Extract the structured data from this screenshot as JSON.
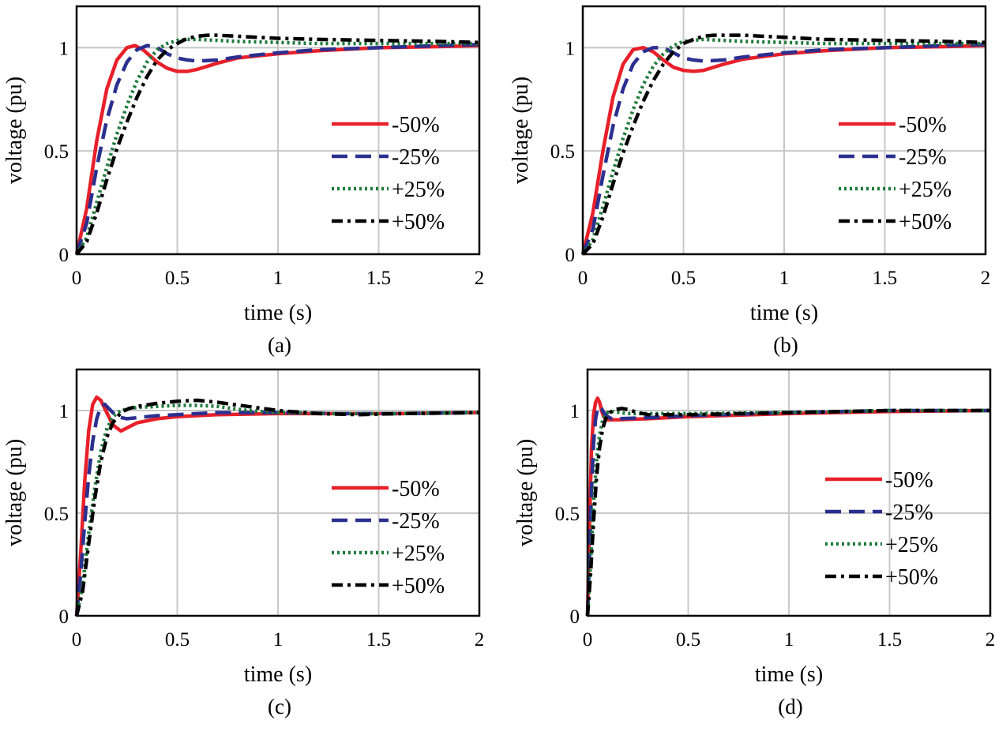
{
  "colors": {
    "minus50": "#e8202a",
    "minus25": "#2b2f8f",
    "plus25": "#1e7a3a",
    "plus50": "#000000",
    "grid": "#c8c8c8",
    "axes": "#000000"
  },
  "chart_data": [
    {
      "type": "line",
      "caption": "(a)",
      "xlabel": "time (s)",
      "ylabel": "voltage (pu)",
      "xlim": [
        0,
        2
      ],
      "ylim": [
        0,
        1.2
      ],
      "xticks": [
        0,
        0.5,
        1,
        1.5,
        2
      ],
      "xtick_labels": [
        "0",
        "0.5",
        "1",
        "1.5",
        "2"
      ],
      "yticks": [
        0,
        0.5,
        1
      ],
      "ytick_labels": [
        "0",
        "0.5",
        "1"
      ],
      "grid": true,
      "legend_position": "center-right",
      "series": [
        {
          "name": "-50%",
          "style": "solid",
          "color": "#e8202a",
          "x": [
            0,
            0.05,
            0.1,
            0.15,
            0.2,
            0.25,
            0.29,
            0.33,
            0.4,
            0.45,
            0.5,
            0.55,
            0.6,
            0.7,
            0.8,
            1.0,
            1.2,
            1.5,
            1.8,
            2.0
          ],
          "y": [
            0,
            0.22,
            0.55,
            0.8,
            0.94,
            1.0,
            1.01,
            0.99,
            0.93,
            0.9,
            0.885,
            0.885,
            0.895,
            0.925,
            0.95,
            0.97,
            0.985,
            1.0,
            1.005,
            1.01
          ]
        },
        {
          "name": "-25%",
          "style": "dashed",
          "color": "#2b2f8f",
          "x": [
            0,
            0.05,
            0.1,
            0.15,
            0.2,
            0.25,
            0.3,
            0.35,
            0.4,
            0.45,
            0.5,
            0.55,
            0.6,
            0.7,
            0.8,
            1.0,
            1.2,
            1.5,
            1.8,
            2.0
          ],
          "y": [
            0,
            0.15,
            0.42,
            0.65,
            0.82,
            0.93,
            0.99,
            1.01,
            1.0,
            0.97,
            0.95,
            0.94,
            0.935,
            0.94,
            0.955,
            0.975,
            0.99,
            1.0,
            1.01,
            1.015
          ]
        },
        {
          "name": "+25%",
          "style": "dotted",
          "color": "#1e7a3a",
          "x": [
            0,
            0.05,
            0.1,
            0.15,
            0.2,
            0.25,
            0.3,
            0.35,
            0.4,
            0.45,
            0.5,
            0.55,
            0.6,
            0.7,
            0.8,
            1.0,
            1.2,
            1.5,
            1.8,
            2.0
          ],
          "y": [
            0,
            0.08,
            0.25,
            0.42,
            0.58,
            0.72,
            0.84,
            0.93,
            0.99,
            1.02,
            1.035,
            1.04,
            1.04,
            1.035,
            1.03,
            1.025,
            1.02,
            1.02,
            1.02,
            1.02
          ]
        },
        {
          "name": "+50%",
          "style": "dashdot",
          "color": "#000000",
          "x": [
            0,
            0.05,
            0.1,
            0.15,
            0.2,
            0.25,
            0.3,
            0.35,
            0.4,
            0.45,
            0.5,
            0.55,
            0.6,
            0.65,
            0.7,
            0.8,
            1.0,
            1.2,
            1.5,
            1.8,
            2.0
          ],
          "y": [
            0,
            0.06,
            0.2,
            0.36,
            0.51,
            0.64,
            0.76,
            0.86,
            0.94,
            0.99,
            1.02,
            1.045,
            1.055,
            1.06,
            1.06,
            1.055,
            1.045,
            1.04,
            1.035,
            1.03,
            1.025
          ]
        }
      ]
    },
    {
      "type": "line",
      "caption": "(b)",
      "xlabel": "time (s)",
      "ylabel": "voltage (pu)",
      "xlim": [
        0,
        2
      ],
      "ylim": [
        0,
        1.2
      ],
      "xticks": [
        0,
        0.5,
        1,
        1.5,
        2
      ],
      "xtick_labels": [
        "0",
        "0.5",
        "1",
        "1.5",
        "2"
      ],
      "yticks": [
        0,
        0.5,
        1
      ],
      "ytick_labels": [
        "0",
        "0.5",
        "1"
      ],
      "grid": true,
      "legend_position": "center-right",
      "series": [
        {
          "name": "-50%",
          "style": "solid",
          "color": "#e8202a",
          "x": [
            0,
            0.05,
            0.1,
            0.15,
            0.2,
            0.25,
            0.3,
            0.35,
            0.4,
            0.45,
            0.5,
            0.55,
            0.6,
            0.7,
            0.8,
            1.0,
            1.2,
            1.5,
            1.8,
            2.0
          ],
          "y": [
            0,
            0.2,
            0.5,
            0.76,
            0.92,
            0.99,
            1.0,
            0.98,
            0.94,
            0.905,
            0.89,
            0.885,
            0.89,
            0.92,
            0.945,
            0.97,
            0.985,
            1.0,
            1.005,
            1.01
          ]
        },
        {
          "name": "-25%",
          "style": "dashed",
          "color": "#2b2f8f",
          "x": [
            0,
            0.05,
            0.1,
            0.15,
            0.2,
            0.25,
            0.3,
            0.35,
            0.4,
            0.45,
            0.5,
            0.55,
            0.6,
            0.7,
            0.8,
            1.0,
            1.2,
            1.5,
            1.8,
            2.0
          ],
          "y": [
            0,
            0.12,
            0.38,
            0.62,
            0.8,
            0.92,
            0.98,
            1.0,
            1.0,
            0.975,
            0.95,
            0.94,
            0.935,
            0.94,
            0.955,
            0.975,
            0.99,
            1.0,
            1.01,
            1.015
          ]
        },
        {
          "name": "+25%",
          "style": "dotted",
          "color": "#1e7a3a",
          "x": [
            0,
            0.05,
            0.1,
            0.15,
            0.2,
            0.25,
            0.3,
            0.35,
            0.4,
            0.45,
            0.5,
            0.55,
            0.6,
            0.7,
            0.8,
            1.0,
            1.2,
            1.5,
            1.8,
            2.0
          ],
          "y": [
            0,
            0.07,
            0.23,
            0.4,
            0.56,
            0.7,
            0.82,
            0.91,
            0.97,
            1.01,
            1.03,
            1.035,
            1.04,
            1.035,
            1.03,
            1.025,
            1.02,
            1.02,
            1.02,
            1.02
          ]
        },
        {
          "name": "+50%",
          "style": "dashdot",
          "color": "#000000",
          "x": [
            0,
            0.05,
            0.1,
            0.15,
            0.2,
            0.25,
            0.3,
            0.35,
            0.4,
            0.45,
            0.5,
            0.55,
            0.6,
            0.65,
            0.7,
            0.8,
            1.0,
            1.2,
            1.5,
            1.8,
            2.0
          ],
          "y": [
            0,
            0.05,
            0.18,
            0.34,
            0.49,
            0.62,
            0.74,
            0.84,
            0.92,
            0.98,
            1.02,
            1.04,
            1.055,
            1.06,
            1.06,
            1.06,
            1.05,
            1.04,
            1.035,
            1.03,
            1.025
          ]
        }
      ]
    },
    {
      "type": "line",
      "caption": "(c)",
      "xlabel": "time (s)",
      "ylabel": "voltage (pu)",
      "xlim": [
        0,
        2
      ],
      "ylim": [
        0,
        1.2
      ],
      "xticks": [
        0,
        0.5,
        1,
        1.5,
        2
      ],
      "xtick_labels": [
        "0",
        "0.5",
        "1",
        "1.5",
        "2"
      ],
      "yticks": [
        0,
        0.5,
        1
      ],
      "ytick_labels": [
        "0",
        "0.5",
        "1"
      ],
      "grid": true,
      "legend_position": "lower-right",
      "series": [
        {
          "name": "-50%",
          "style": "solid",
          "color": "#e8202a",
          "x": [
            0,
            0.02,
            0.04,
            0.06,
            0.08,
            0.1,
            0.12,
            0.15,
            0.18,
            0.22,
            0.26,
            0.3,
            0.4,
            0.5,
            0.7,
            1.0,
            1.3,
            1.6,
            2.0
          ],
          "y": [
            0,
            0.3,
            0.65,
            0.9,
            1.03,
            1.065,
            1.05,
            0.99,
            0.93,
            0.9,
            0.92,
            0.94,
            0.96,
            0.97,
            0.98,
            0.985,
            0.985,
            0.985,
            0.99
          ]
        },
        {
          "name": "-25%",
          "style": "dashed",
          "color": "#2b2f8f",
          "x": [
            0,
            0.02,
            0.04,
            0.06,
            0.08,
            0.1,
            0.12,
            0.14,
            0.16,
            0.2,
            0.25,
            0.3,
            0.4,
            0.5,
            0.7,
            1.0,
            1.3,
            1.6,
            2.0
          ],
          "y": [
            0,
            0.2,
            0.45,
            0.68,
            0.85,
            0.96,
            1.02,
            1.03,
            1.01,
            0.97,
            0.96,
            0.965,
            0.975,
            0.98,
            0.99,
            0.99,
            0.985,
            0.985,
            0.99
          ]
        },
        {
          "name": "+25%",
          "style": "dotted",
          "color": "#1e7a3a",
          "x": [
            0,
            0.03,
            0.06,
            0.09,
            0.12,
            0.15,
            0.18,
            0.22,
            0.26,
            0.3,
            0.4,
            0.5,
            0.6,
            0.7,
            0.85,
            1.0,
            1.3,
            1.6,
            2.0
          ],
          "y": [
            0,
            0.15,
            0.4,
            0.62,
            0.8,
            0.91,
            0.97,
            1.0,
            1.01,
            1.015,
            1.02,
            1.025,
            1.025,
            1.02,
            1.0,
            0.99,
            0.985,
            0.985,
            0.99
          ]
        },
        {
          "name": "+50%",
          "style": "dashdot",
          "color": "#000000",
          "x": [
            0,
            0.03,
            0.06,
            0.09,
            0.12,
            0.15,
            0.18,
            0.22,
            0.26,
            0.3,
            0.4,
            0.5,
            0.6,
            0.7,
            0.85,
            1.0,
            1.2,
            1.4,
            1.6,
            2.0
          ],
          "y": [
            0,
            0.12,
            0.35,
            0.57,
            0.75,
            0.87,
            0.94,
            0.99,
            1.01,
            1.02,
            1.035,
            1.045,
            1.05,
            1.04,
            1.02,
            1.0,
            0.985,
            0.98,
            0.985,
            0.99
          ]
        }
      ]
    },
    {
      "type": "line",
      "caption": "(d)",
      "xlabel": "time (s)",
      "ylabel": "voltage (pu)",
      "xlim": [
        0,
        2
      ],
      "ylim": [
        0,
        1.2
      ],
      "xticks": [
        0,
        0.5,
        1,
        1.5,
        2
      ],
      "xtick_labels": [
        "0",
        "0.5",
        "1",
        "1.5",
        "2"
      ],
      "yticks": [
        0,
        0.5,
        1
      ],
      "ytick_labels": [
        "0",
        "0.5",
        "1"
      ],
      "grid": true,
      "legend_position": "lower-right",
      "series": [
        {
          "name": "-50%",
          "style": "solid",
          "color": "#e8202a",
          "x": [
            0,
            0.01,
            0.02,
            0.03,
            0.04,
            0.05,
            0.06,
            0.07,
            0.08,
            0.1,
            0.15,
            0.3,
            0.5,
            1.0,
            1.5,
            2.0
          ],
          "y": [
            0,
            0.45,
            0.82,
            0.98,
            1.04,
            1.06,
            1.04,
            1.0,
            0.97,
            0.955,
            0.955,
            0.96,
            0.97,
            0.985,
            0.995,
            1.0
          ]
        },
        {
          "name": "-25%",
          "style": "dashed",
          "color": "#2b2f8f",
          "x": [
            0,
            0.01,
            0.02,
            0.03,
            0.04,
            0.05,
            0.06,
            0.07,
            0.08,
            0.1,
            0.12,
            0.15,
            0.3,
            0.5,
            1.0,
            1.5,
            2.0
          ],
          "y": [
            0,
            0.3,
            0.62,
            0.84,
            0.96,
            1.01,
            1.02,
            1.01,
            0.99,
            0.97,
            0.96,
            0.96,
            0.965,
            0.975,
            0.99,
            1.0,
            1.0
          ]
        },
        {
          "name": "+25%",
          "style": "dotted",
          "color": "#1e7a3a",
          "x": [
            0,
            0.015,
            0.03,
            0.045,
            0.06,
            0.075,
            0.09,
            0.11,
            0.13,
            0.16,
            0.2,
            0.3,
            0.5,
            1.0,
            1.5,
            2.0
          ],
          "y": [
            0,
            0.25,
            0.55,
            0.76,
            0.88,
            0.95,
            0.985,
            0.995,
            0.995,
            0.99,
            0.985,
            0.985,
            0.985,
            0.99,
            1.0,
            1.0
          ]
        },
        {
          "name": "+50%",
          "style": "dashdot",
          "color": "#000000",
          "x": [
            0,
            0.015,
            0.03,
            0.045,
            0.06,
            0.075,
            0.09,
            0.11,
            0.14,
            0.17,
            0.2,
            0.25,
            0.3,
            0.5,
            1.0,
            1.5,
            2.0
          ],
          "y": [
            0,
            0.2,
            0.46,
            0.68,
            0.82,
            0.91,
            0.96,
            0.99,
            1.005,
            1.01,
            1.005,
            0.99,
            0.98,
            0.98,
            0.99,
            1.0,
            1.0
          ]
        }
      ]
    }
  ]
}
